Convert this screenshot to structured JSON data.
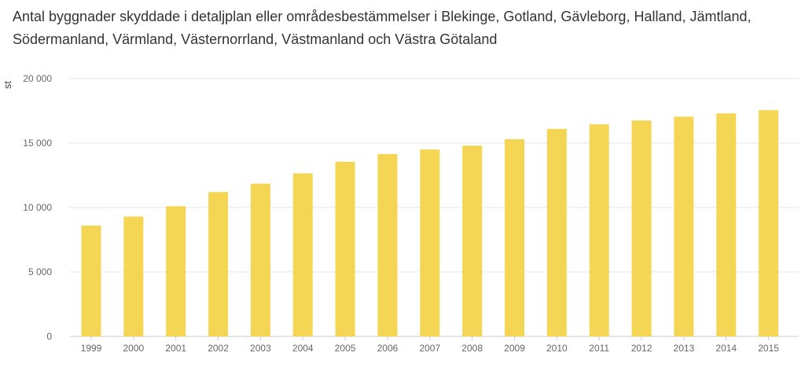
{
  "title_lines": [
    "Antal byggnader skyddade i detaljplan eller områdesbestämmelser i Blekinge, Gotland, Gävleborg, Halland, Jämtland,",
    "Södermanland, Värmland, Västernorrland, Västmanland och Västra Götaland"
  ],
  "chart_data": {
    "type": "bar",
    "title": "Antal byggnader skyddade i detaljplan eller områdesbestämmelser i Blekinge, Gotland, Gävleborg, Halland, Jämtland, Södermanland, Värmland, Västernorrland, Västmanland och Västra Götaland",
    "xlabel": "",
    "ylabel": "st",
    "ylim": [
      0,
      20000
    ],
    "yticks": [
      0,
      5000,
      10000,
      15000,
      20000
    ],
    "ytick_labels": [
      "0",
      "5 000",
      "10 000",
      "15 000",
      "20 000"
    ],
    "grid": true,
    "bar_color": "#f5d554",
    "categories": [
      "1999",
      "2000",
      "2001",
      "2002",
      "2003",
      "2004",
      "2005",
      "2006",
      "2007",
      "2008",
      "2009",
      "2010",
      "2011",
      "2012",
      "2013",
      "2014",
      "2015"
    ],
    "values": [
      8600,
      9300,
      10100,
      11200,
      11850,
      12650,
      13550,
      14150,
      14500,
      14800,
      15300,
      16100,
      16450,
      16750,
      17050,
      17300,
      17550
    ]
  }
}
